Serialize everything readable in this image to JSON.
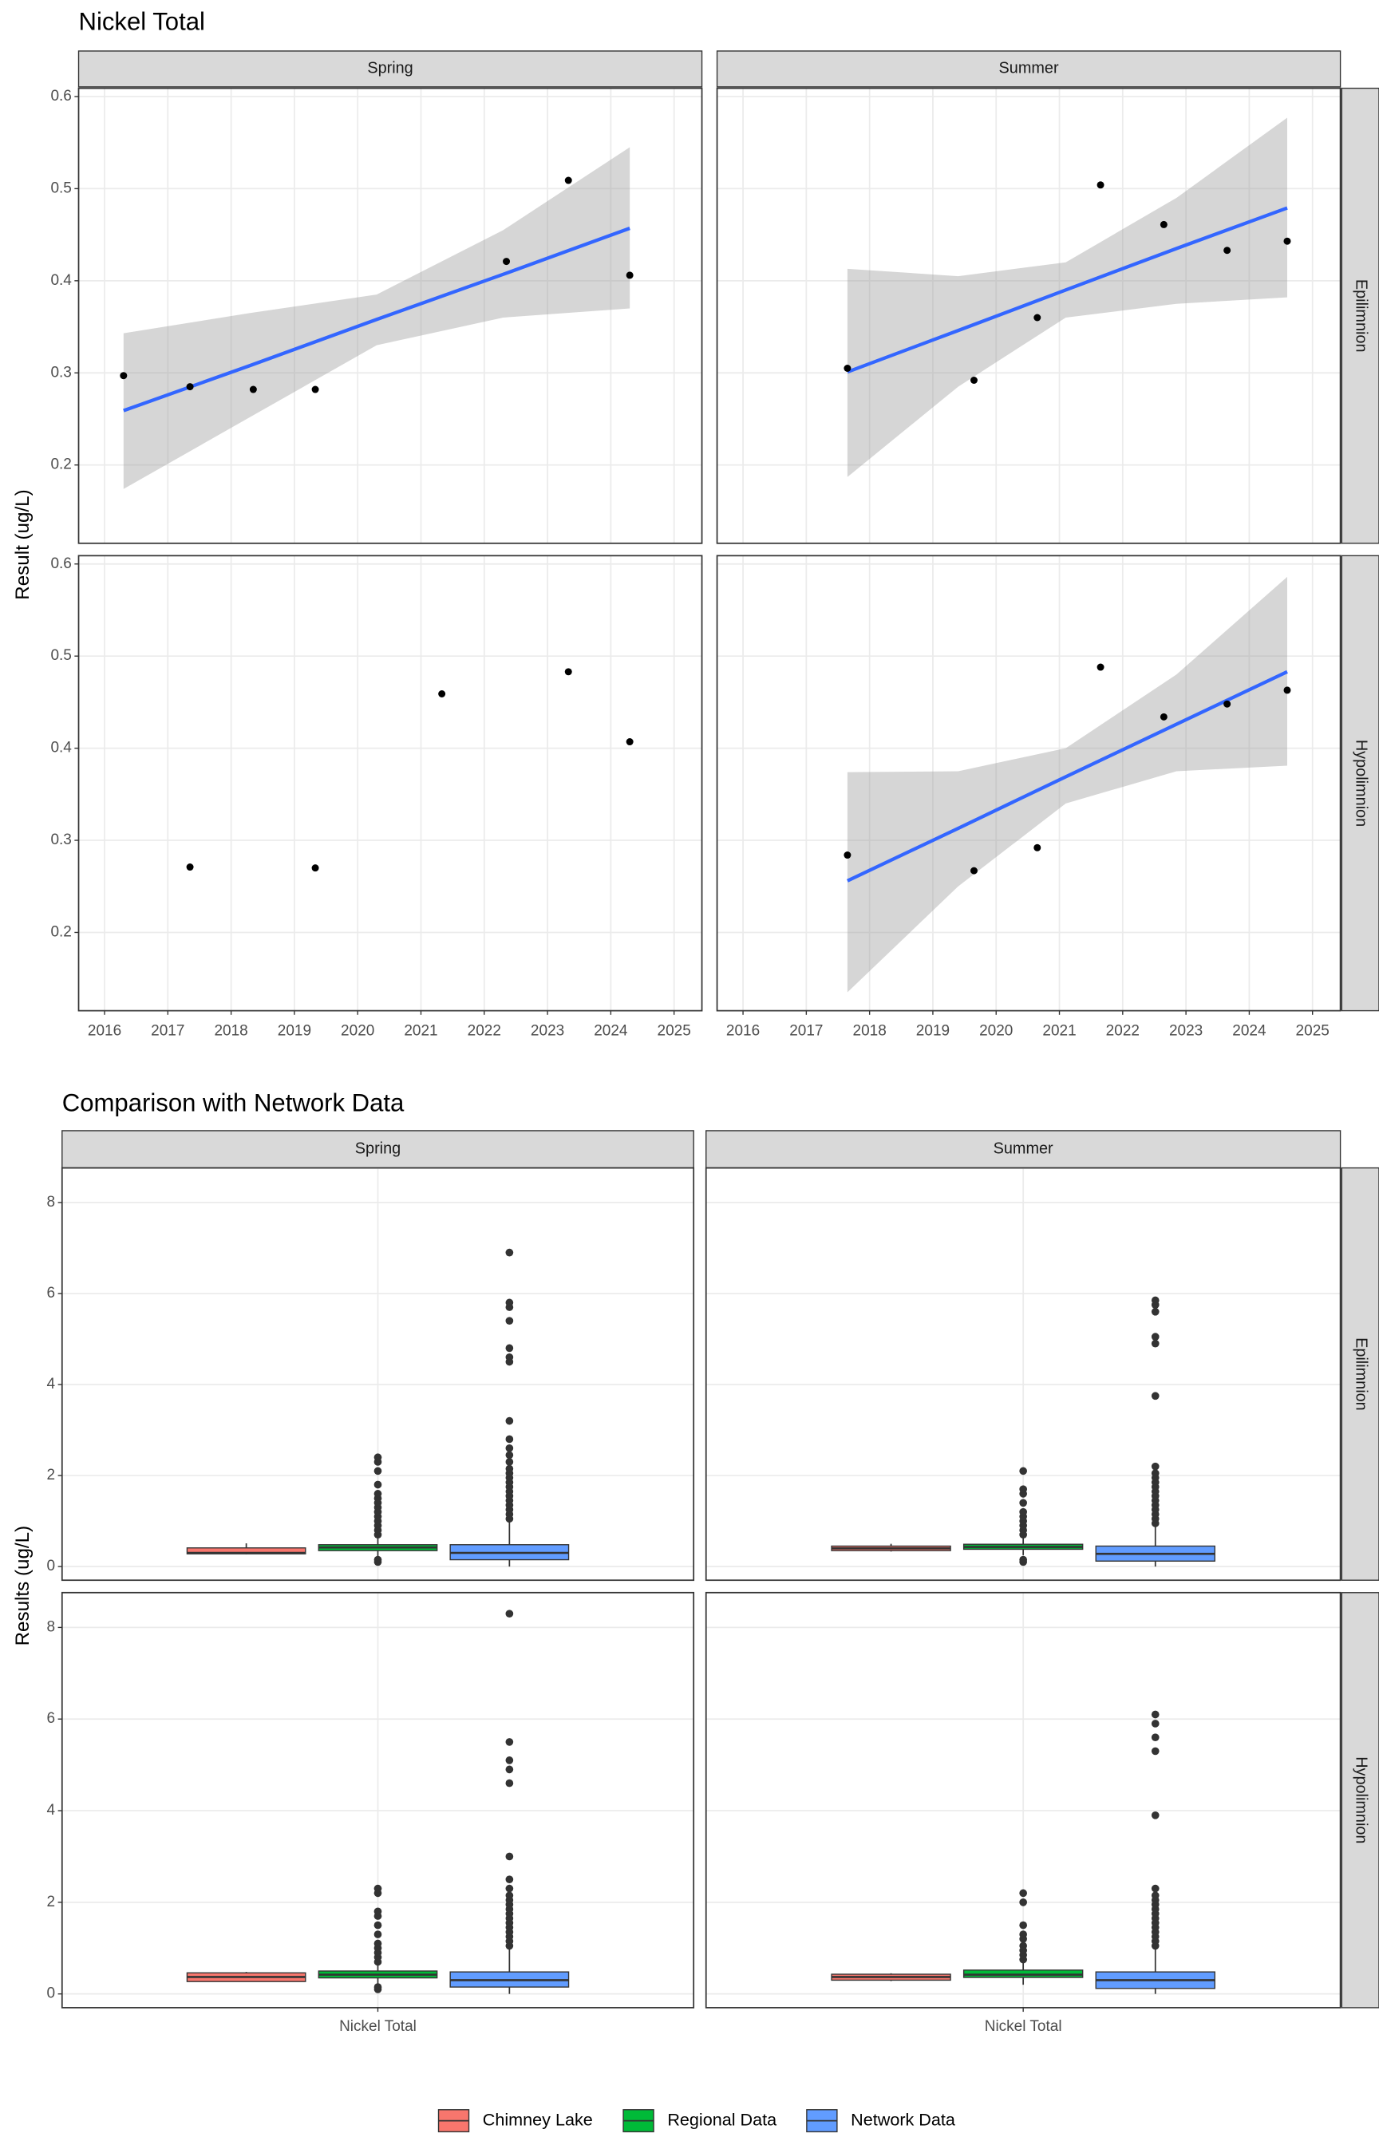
{
  "chart_data": [
    {
      "type": "scatter",
      "title": "Nickel Total",
      "y_label": "Result (ug/L)",
      "columns": [
        "Spring",
        "Summer"
      ],
      "rows": [
        "Epilimnion",
        "Hypolimnion"
      ],
      "xlim": [
        2015.59,
        2025.44
      ],
      "xticks": [
        2016,
        2017,
        2018,
        2019,
        2020,
        2021,
        2022,
        2023,
        2024,
        2025
      ],
      "ylim": [
        0.115,
        0.609
      ],
      "yticks": [
        0.2,
        0.3,
        0.4,
        0.5,
        0.6
      ],
      "grid": true,
      "point_color": "#000000",
      "fit_color": "#3366ff",
      "band_color": "#999999",
      "panels": [
        [
          {
            "x": [
              2016.3,
              2017.35,
              2018.35,
              2019.33,
              2022.35,
              2023.33,
              2024.3
            ],
            "y": [
              0.297,
              0.285,
              0.282,
              0.282,
              0.421,
              0.509,
              0.406
            ],
            "fit": {
              "x": [
                2016.3,
                2018.3,
                2020.3,
                2022.3,
                2024.3
              ],
              "values": [
                0.259,
                0.308,
                0.358,
                0.407,
                0.457
              ],
              "lower": [
                0.174,
                0.252,
                0.33,
                0.36,
                0.37
              ],
              "upper": [
                0.343,
                0.365,
                0.385,
                0.455,
                0.545
              ]
            }
          },
          {
            "x": [
              2017.65,
              2019.65,
              2020.65,
              2021.65,
              2022.65,
              2023.65,
              2024.6
            ],
            "y": [
              0.305,
              0.292,
              0.36,
              0.504,
              0.461,
              0.433,
              0.443
            ],
            "fit": {
              "x": [
                2017.65,
                2019.4,
                2021.1,
                2022.85,
                2024.6
              ],
              "values": [
                0.301,
                0.346,
                0.39,
                0.435,
                0.479
              ],
              "lower": [
                0.187,
                0.285,
                0.36,
                0.375,
                0.382
              ],
              "upper": [
                0.413,
                0.405,
                0.42,
                0.49,
                0.577
              ]
            }
          }
        ],
        [
          {
            "x": [
              2017.35,
              2019.33,
              2021.33,
              2023.33,
              2024.3
            ],
            "y": [
              0.271,
              0.27,
              0.459,
              0.483,
              0.407
            ]
          },
          {
            "x": [
              2017.65,
              2019.65,
              2020.65,
              2021.65,
              2022.65,
              2023.65,
              2024.6
            ],
            "y": [
              0.284,
              0.267,
              0.292,
              0.488,
              0.434,
              0.448,
              0.463
            ],
            "fit": {
              "x": [
                2017.65,
                2019.4,
                2021.1,
                2022.85,
                2024.6
              ],
              "values": [
                0.256,
                0.313,
                0.369,
                0.426,
                0.483
              ],
              "lower": [
                0.135,
                0.25,
                0.34,
                0.375,
                0.381
              ],
              "upper": [
                0.374,
                0.375,
                0.4,
                0.48,
                0.586
              ]
            }
          }
        ]
      ]
    },
    {
      "type": "boxplot",
      "title": "Comparison with Network Data",
      "y_label": "Results (ug/L)",
      "categories": [
        "Nickel Total"
      ],
      "columns": [
        "Spring",
        "Summer"
      ],
      "rows": [
        "Epilimnion",
        "Hypolimnion"
      ],
      "ylim": [
        -0.3,
        8.76
      ],
      "yticks": [
        0,
        2,
        4,
        6,
        8
      ],
      "grid": true,
      "legend": "bottom",
      "series": [
        {
          "name": "Chimney Lake",
          "color": "#f8766d",
          "panels": [
            [
              {
                "low": 0.27,
                "q1": 0.28,
                "median": 0.3,
                "q3": 0.41,
                "high": 0.51,
                "outliers": []
              },
              {
                "low": 0.33,
                "q1": 0.35,
                "median": 0.4,
                "q3": 0.45,
                "high": 0.5,
                "outliers": []
              }
            ],
            [
              {
                "low": 0.27,
                "q1": 0.27,
                "median": 0.37,
                "q3": 0.46,
                "high": 0.48,
                "outliers": []
              },
              {
                "low": 0.28,
                "q1": 0.3,
                "median": 0.37,
                "q3": 0.43,
                "high": 0.45,
                "outliers": []
              }
            ]
          ]
        },
        {
          "name": "Regional Data",
          "color": "#00ba38",
          "panels": [
            [
              {
                "low": 0.2,
                "q1": 0.35,
                "median": 0.42,
                "q3": 0.48,
                "high": 0.65,
                "outliers": [
                  0.1,
                  0.15,
                  0.7,
                  0.8,
                  0.9,
                  1.0,
                  1.1,
                  1.2,
                  1.3,
                  1.4,
                  1.5,
                  1.6,
                  1.8,
                  2.1,
                  2.3,
                  2.4
                ]
              },
              {
                "low": 0.25,
                "q1": 0.38,
                "median": 0.43,
                "q3": 0.49,
                "high": 0.65,
                "outliers": [
                  0.1,
                  0.15,
                  0.7,
                  0.8,
                  0.9,
                  1.0,
                  1.1,
                  1.2,
                  1.4,
                  1.6,
                  1.7,
                  2.1
                ]
              }
            ],
            [
              {
                "low": 0.2,
                "q1": 0.35,
                "median": 0.42,
                "q3": 0.5,
                "high": 0.65,
                "outliers": [
                  0.1,
                  0.15,
                  0.7,
                  0.8,
                  0.9,
                  1.0,
                  1.1,
                  1.3,
                  1.5,
                  1.7,
                  1.8,
                  2.2,
                  2.3
                ]
              },
              {
                "low": 0.2,
                "q1": 0.36,
                "median": 0.42,
                "q3": 0.52,
                "high": 0.7,
                "outliers": [
                  0.75,
                  0.85,
                  0.95,
                  1.05,
                  1.2,
                  1.3,
                  1.5,
                  2.0,
                  2.2
                ]
              }
            ]
          ]
        },
        {
          "name": "Network Data",
          "color": "#619cff",
          "panels": [
            [
              {
                "low": 0,
                "q1": 0.15,
                "median": 0.3,
                "q3": 0.48,
                "high": 1.0,
                "outliers": [
                  1.05,
                  1.15,
                  1.25,
                  1.35,
                  1.45,
                  1.55,
                  1.65,
                  1.75,
                  1.85,
                  1.95,
                  2.05,
                  2.15,
                  2.3,
                  2.45,
                  2.6,
                  2.8,
                  3.2,
                  4.5,
                  4.6,
                  4.8,
                  5.4,
                  5.7,
                  5.8,
                  6.9
                ]
              },
              {
                "low": 0,
                "q1": 0.12,
                "median": 0.28,
                "q3": 0.45,
                "high": 0.9,
                "outliers": [
                  0.95,
                  1.05,
                  1.15,
                  1.25,
                  1.35,
                  1.45,
                  1.55,
                  1.65,
                  1.75,
                  1.85,
                  1.95,
                  2.05,
                  2.2,
                  3.75,
                  4.9,
                  5.05,
                  5.6,
                  5.75,
                  5.85
                ]
              }
            ],
            [
              {
                "low": 0,
                "q1": 0.15,
                "median": 0.3,
                "q3": 0.48,
                "high": 1.0,
                "outliers": [
                  1.05,
                  1.15,
                  1.25,
                  1.35,
                  1.45,
                  1.55,
                  1.65,
                  1.75,
                  1.85,
                  1.95,
                  2.05,
                  2.15,
                  2.3,
                  2.5,
                  3.0,
                  4.6,
                  4.9,
                  5.1,
                  5.5,
                  8.3
                ]
              },
              {
                "low": 0,
                "q1": 0.12,
                "median": 0.3,
                "q3": 0.48,
                "high": 1.0,
                "outliers": [
                  1.05,
                  1.15,
                  1.25,
                  1.35,
                  1.45,
                  1.55,
                  1.65,
                  1.75,
                  1.85,
                  1.95,
                  2.05,
                  2.15,
                  2.3,
                  3.9,
                  5.3,
                  5.6,
                  5.9,
                  6.1
                ]
              }
            ]
          ]
        }
      ]
    }
  ]
}
